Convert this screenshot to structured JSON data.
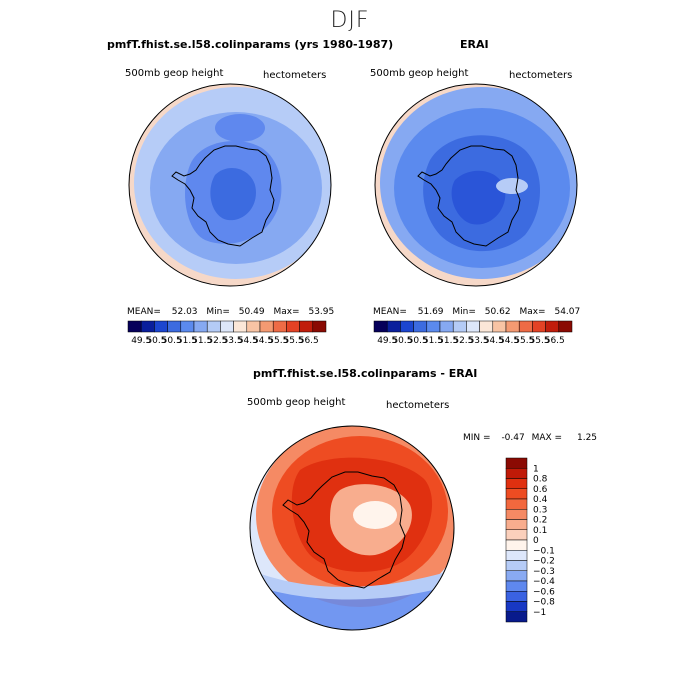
{
  "figure_title": "DJF",
  "panels": [
    {
      "title": "pmfT.fhist.se.l58.colinparams (yrs 1980-1987)",
      "left_label": "500mb geop height",
      "right_label": "hectometers",
      "stats": {
        "mean_label": "MEAN=",
        "mean": "52.03",
        "min_label": "Min=",
        "min": "50.49",
        "max_label": "Max=",
        "max": "53.95"
      }
    },
    {
      "title": "ERAI",
      "left_label": "500mb geop height",
      "right_label": "hectometers",
      "stats": {
        "mean_label": "MEAN=",
        "mean": "51.69",
        "min_label": "Min=",
        "min": "50.62",
        "max_label": "Max=",
        "max": "54.07"
      }
    },
    {
      "title": "pmfT.fhist.se.l58.colinparams - ERAI",
      "left_label": "500mb geop height",
      "right_label": "hectometers",
      "stats": {
        "min_label": "MIN =",
        "min": "-0.47",
        "max_label": "MAX =",
        "max": "1.25"
      }
    }
  ],
  "abs_colorbar": {
    "labels": [
      "49.5",
      "50.5",
      "50.5",
      "51.5",
      "51.5",
      "52.5",
      "53.5",
      "54.5",
      "54.5",
      "55.5",
      "55.5",
      "56.5"
    ],
    "colors": [
      "#06005a",
      "#0a1f9c",
      "#1c46d0",
      "#3c6be0",
      "#5b8aee",
      "#86a9f2",
      "#b4cbf6",
      "#dde7fa",
      "#fbe7d8",
      "#f8c4a4",
      "#f49a72",
      "#ee6b46",
      "#e34225",
      "#c11d0c",
      "#8a0a03"
    ]
  },
  "diff_colorbar": {
    "labels": [
      "1",
      "0.8",
      "0.6",
      "0.4",
      "0.3",
      "0.2",
      "0.1",
      "0",
      "−0.1",
      "−0.2",
      "−0.3",
      "−0.4",
      "−0.6",
      "−0.8",
      "−1"
    ],
    "colors": [
      "#8b0a03",
      "#c01a08",
      "#e03010",
      "#ee4c22",
      "#f2683e",
      "#f58a64",
      "#f8ad8e",
      "#fbd0bc",
      "#fff4ec",
      "#dde7fb",
      "#b6ccf7",
      "#89aaf2",
      "#5f88ee",
      "#3a62e2",
      "#1838c4",
      "#081a8c"
    ]
  },
  "map_colors": {
    "panel1": {
      "outer": "#f6d8c8",
      "ring": "#b6ccf7",
      "mid": "#86a9f2",
      "inner": "#5f88ee",
      "core": "#3c6be0"
    },
    "panel2": {
      "outer": "#f6d8c8",
      "ring": "#86a9f2",
      "mid": "#5b8aee",
      "inner": "#3c6be0",
      "core": "#2a55d8"
    },
    "panel3": {
      "outer": "#dde7fb",
      "ring": "#f58a64",
      "mid": "#ee4c22",
      "inner": "#e03010",
      "core": "#f8ad8e"
    }
  }
}
